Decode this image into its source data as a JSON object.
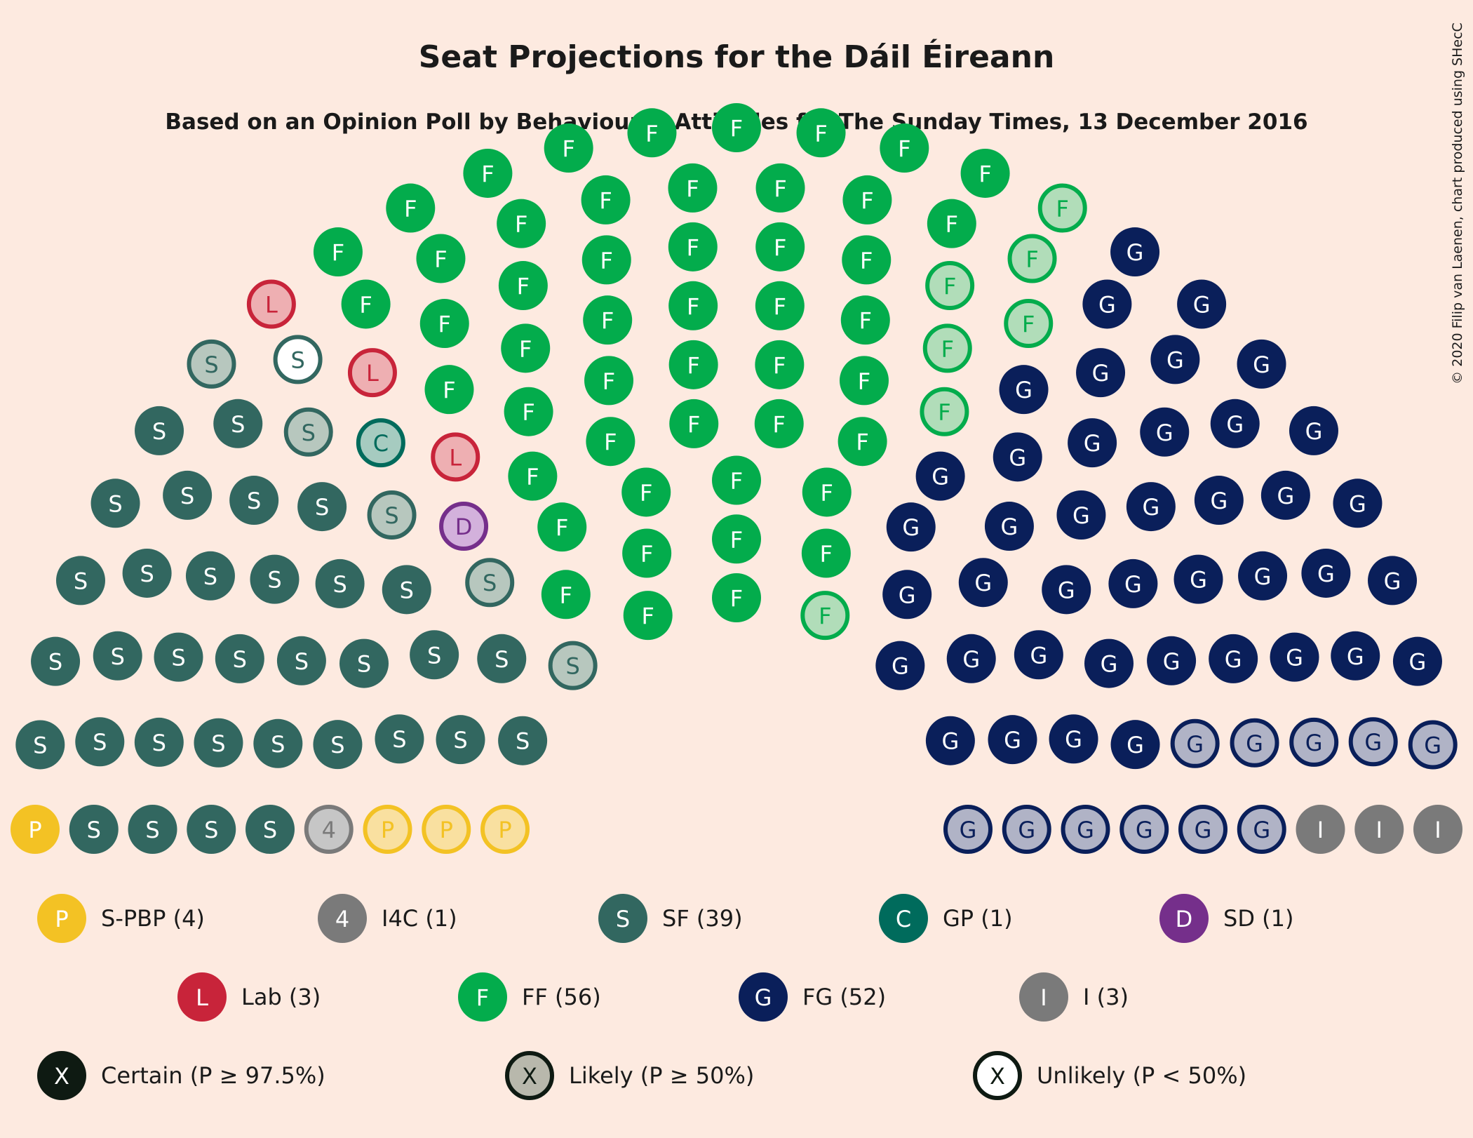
{
  "title": "Seat Projections for the Dáil Éireann",
  "subtitle": "Based on an Opinion Poll by Behaviour & Attitudes for The Sunday Times, 13 December 2016",
  "credit": "© 2020 Filip van Laenen, chart produced using SHecC",
  "chart_data": {
    "type": "parliament",
    "total_seats": 160,
    "parties": [
      {
        "code": "P",
        "label": "S-PBP (4)",
        "name": "S-PBP",
        "seats": 4,
        "certain": 1,
        "likely": 3,
        "unlikely": 0,
        "color": "#F3C224",
        "light": "#F9E0A0"
      },
      {
        "code": "4",
        "label": "I4C (1)",
        "name": "I4C",
        "seats": 1,
        "certain": 0,
        "likely": 1,
        "unlikely": 0,
        "color": "#7A7A7A",
        "light": "#C6C6C6"
      },
      {
        "code": "S",
        "label": "SF (39)",
        "name": "SF",
        "seats": 39,
        "certain": 33,
        "likely": 5,
        "unlikely": 1,
        "color": "#326760",
        "light": "#B7C7BE"
      },
      {
        "code": "C",
        "label": "GP (1)",
        "name": "GP",
        "seats": 1,
        "certain": 0,
        "likely": 1,
        "unlikely": 0,
        "color": "#006B5C",
        "light": "#A6CBC0"
      },
      {
        "code": "D",
        "label": "SD (1)",
        "name": "SD",
        "seats": 1,
        "certain": 0,
        "likely": 1,
        "unlikely": 0,
        "color": "#752F8B",
        "light": "#D3B1DC"
      },
      {
        "code": "L",
        "label": "Lab (3)",
        "name": "Lab",
        "seats": 3,
        "certain": 0,
        "likely": 3,
        "unlikely": 0,
        "color": "#C8243A",
        "light": "#EEAFB2"
      },
      {
        "code": "F",
        "label": "FF (56)",
        "name": "FF",
        "seats": 56,
        "certain": 49,
        "likely": 7,
        "unlikely": 0,
        "color": "#03AC4C",
        "light": "#B1DDB9"
      },
      {
        "code": "G",
        "label": "FG (52)",
        "name": "FG",
        "seats": 52,
        "certain": 41,
        "likely": 11,
        "unlikely": 0,
        "color": "#0A1F5A",
        "light": "#B0B3C6"
      },
      {
        "code": "I",
        "label": "I (3)",
        "name": "I",
        "seats": 3,
        "certain": 3,
        "likely": 0,
        "unlikely": 0,
        "color": "#7A7A7A",
        "light": "#C6C6C6"
      }
    ],
    "certainty_legend": [
      {
        "key": "certain",
        "label": "Certain (P ≥ 97.5%)"
      },
      {
        "key": "likely",
        "label": "Likely (P ≥ 50%)"
      },
      {
        "key": "unlikely",
        "label": "Unlikely (P < 50%)"
      }
    ],
    "certainty_symbol": "X"
  }
}
